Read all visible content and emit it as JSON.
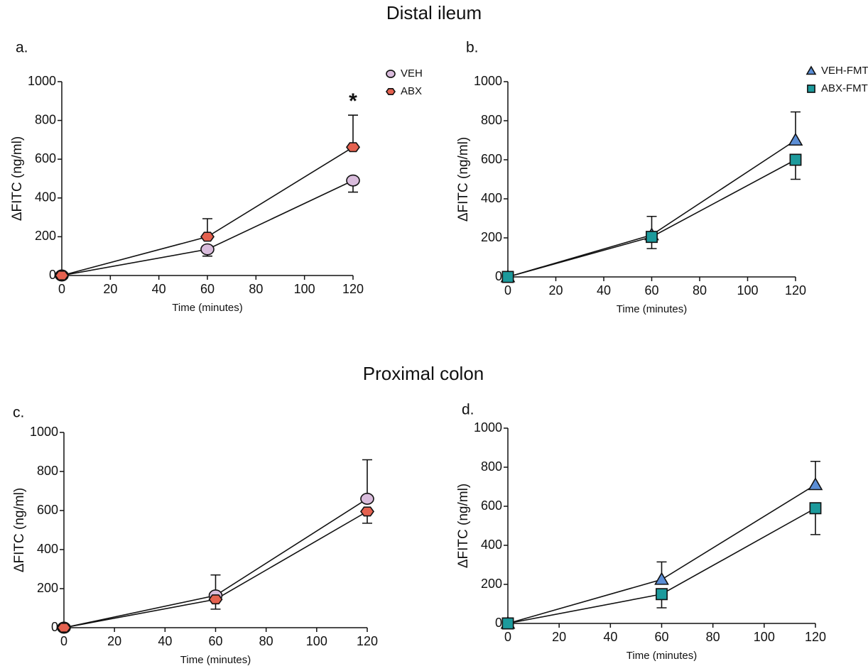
{
  "section_titles": [
    "Distal ileum",
    "Proximal colon"
  ],
  "chart_data": [
    {
      "type": "line",
      "panel_label": "a.",
      "y_label": "ΔFITC  (ng/ml)",
      "x_label": "Time (minutes)",
      "x": [
        0,
        60,
        120
      ],
      "xlim": [
        0,
        120
      ],
      "xticks": [
        0,
        20,
        40,
        60,
        80,
        100,
        120
      ],
      "ylim": [
        0,
        1000
      ],
      "yticks": [
        0,
        200,
        400,
        600,
        800,
        1000
      ],
      "legend": true,
      "series": [
        {
          "name": "VEH",
          "color": "#d9bcdc",
          "marker": "circle",
          "values": [
            0,
            135,
            490
          ],
          "errors": [
            0,
            35,
            60
          ],
          "error_direction": "down"
        },
        {
          "name": "ABX",
          "color": "#e4614f",
          "marker": "hexagon",
          "values": [
            0,
            200,
            662
          ],
          "errors": [
            0,
            93,
            165
          ],
          "error_direction": "up"
        }
      ],
      "annotations": [
        {
          "text": "*",
          "x": 120
        }
      ]
    },
    {
      "type": "line",
      "panel_label": "b.",
      "y_label": "ΔFITC  (ng/ml)",
      "x_label": "Time (minutes)",
      "x": [
        0,
        60,
        120
      ],
      "xlim": [
        0,
        120
      ],
      "xticks": [
        0,
        20,
        40,
        60,
        80,
        100,
        120
      ],
      "ylim": [
        0,
        1000
      ],
      "yticks": [
        0,
        200,
        400,
        600,
        800,
        1000
      ],
      "legend": true,
      "series": [
        {
          "name": "VEH-FMT",
          "color": "#5b8ed6",
          "marker": "triangle",
          "values": [
            0,
            215,
            700
          ],
          "errors": [
            0,
            95,
            145
          ],
          "error_direction": "up"
        },
        {
          "name": "ABX-FMT",
          "color": "#1c9a9c",
          "marker": "square",
          "values": [
            0,
            205,
            600
          ],
          "errors": [
            0,
            60,
            100
          ],
          "error_direction": "down"
        }
      ]
    },
    {
      "type": "line",
      "panel_label": "c.",
      "y_label": "ΔFITC  (ng/ml)",
      "x_label": "Time (minutes)",
      "x": [
        0,
        60,
        120
      ],
      "xlim": [
        0,
        120
      ],
      "xticks": [
        0,
        20,
        40,
        60,
        80,
        100,
        120
      ],
      "ylim": [
        0,
        1000
      ],
      "yticks": [
        0,
        200,
        400,
        600,
        800,
        1000
      ],
      "legend": false,
      "series": [
        {
          "name": "VEH",
          "color": "#d9bcdc",
          "marker": "circle",
          "values": [
            0,
            165,
            660
          ],
          "errors": [
            0,
            105,
            200
          ],
          "error_direction": "up"
        },
        {
          "name": "ABX",
          "color": "#e4614f",
          "marker": "hexagon",
          "values": [
            0,
            145,
            595
          ],
          "errors": [
            0,
            50,
            60
          ],
          "error_direction": "down"
        }
      ]
    },
    {
      "type": "line",
      "panel_label": "d.",
      "y_label": "ΔFITC  (ng/ml)",
      "x_label": "Time (minutes)",
      "x": [
        0,
        60,
        120
      ],
      "xlim": [
        0,
        120
      ],
      "xticks": [
        0,
        20,
        40,
        60,
        80,
        100,
        120
      ],
      "ylim": [
        0,
        1000
      ],
      "yticks": [
        0,
        200,
        400,
        600,
        800,
        1000
      ],
      "legend": false,
      "series": [
        {
          "name": "VEH-FMT",
          "color": "#5b8ed6",
          "marker": "triangle",
          "values": [
            0,
            225,
            710
          ],
          "errors": [
            0,
            90,
            120
          ],
          "error_direction": "up"
        },
        {
          "name": "ABX-FMT",
          "color": "#1c9a9c",
          "marker": "square",
          "values": [
            0,
            150,
            590
          ],
          "errors": [
            0,
            70,
            135
          ],
          "error_direction": "down"
        }
      ]
    }
  ]
}
